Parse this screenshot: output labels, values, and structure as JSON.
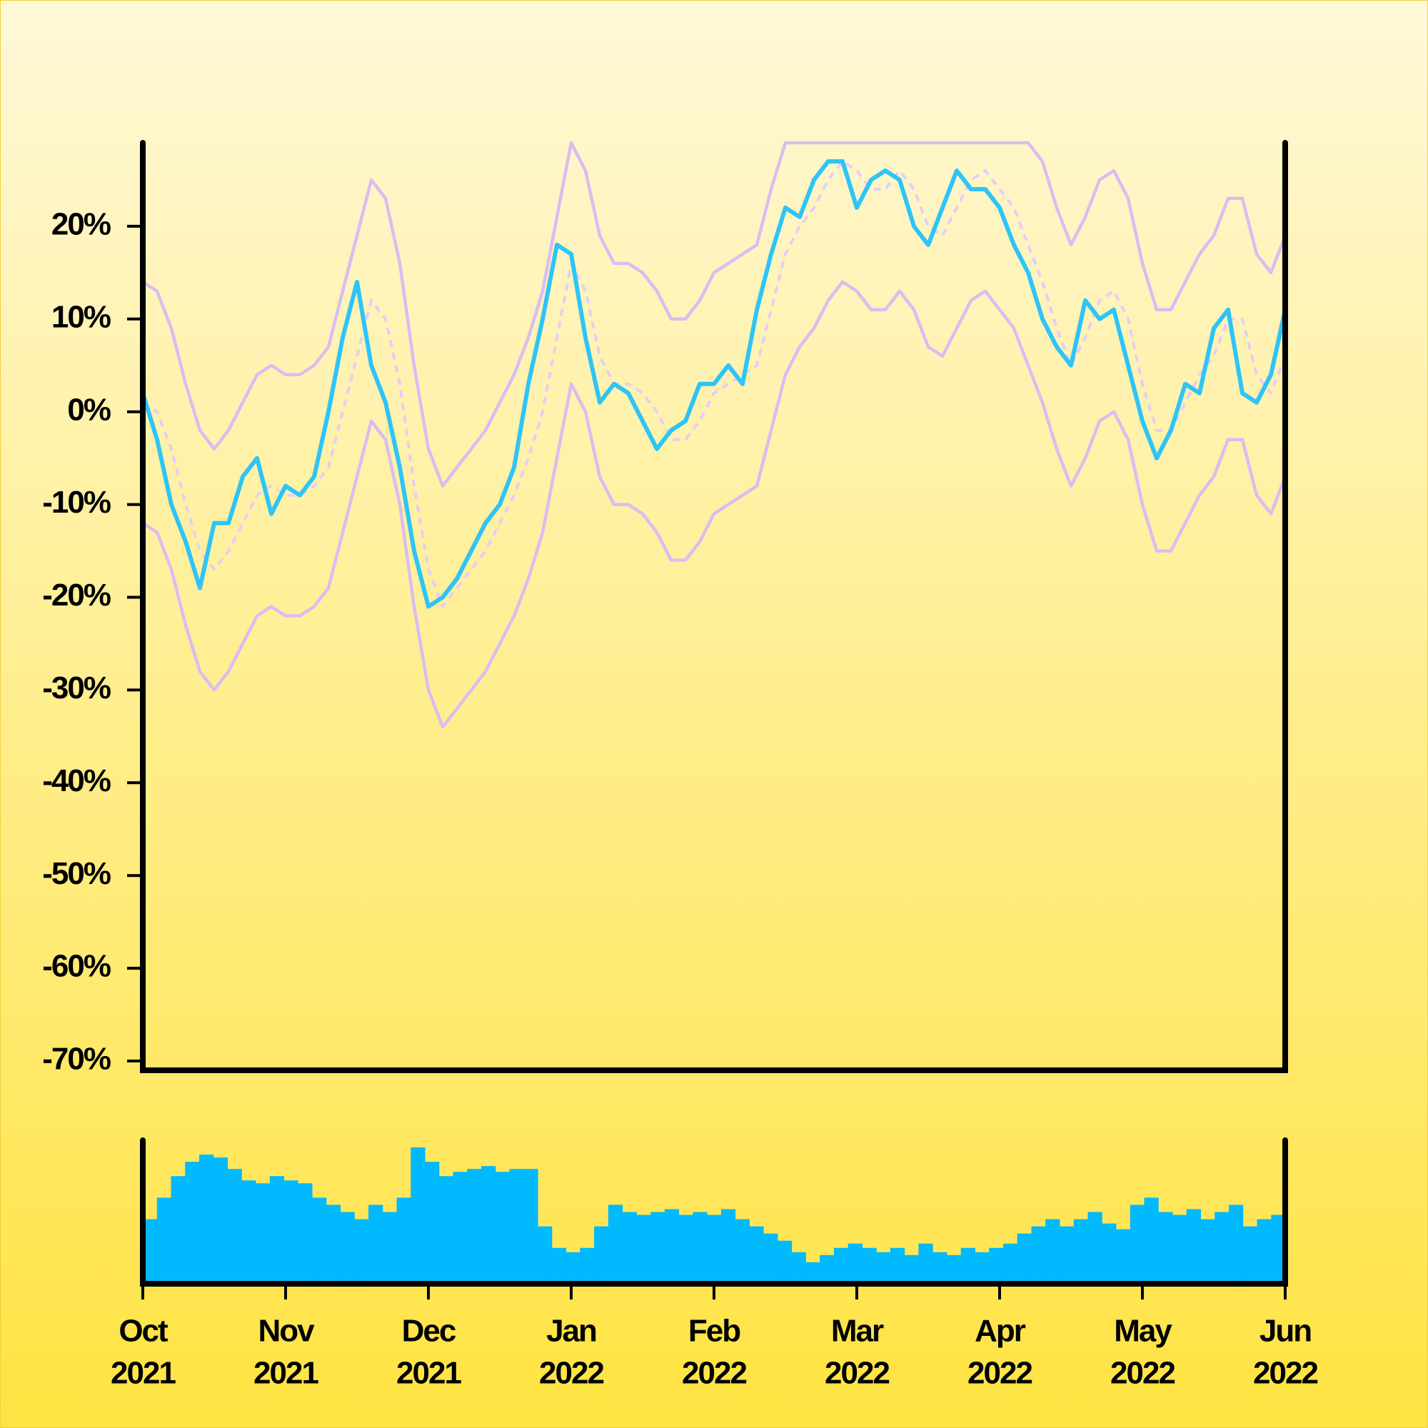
{
  "chart_data": [
    {
      "type": "line",
      "xlim": [
        0,
        8
      ],
      "ylim": [
        -71,
        29
      ],
      "yticks": [
        {
          "value": 20,
          "label": "20%"
        },
        {
          "value": 10,
          "label": "10%"
        },
        {
          "value": 0,
          "label": "0%"
        },
        {
          "value": -10,
          "label": "-10%"
        },
        {
          "value": -20,
          "label": "-20%"
        },
        {
          "value": -30,
          "label": "-30%"
        },
        {
          "value": -40,
          "label": "-40%"
        },
        {
          "value": -50,
          "label": "-50%"
        },
        {
          "value": -60,
          "label": "-60%"
        },
        {
          "value": -70,
          "label": "-70%"
        }
      ],
      "series": [
        {
          "color": "#d9bdf2",
          "dashed": false,
          "values": [
            14,
            13,
            9,
            3,
            -2,
            -4,
            -2,
            1,
            4,
            5,
            4,
            4,
            5,
            7,
            13,
            19,
            25,
            23,
            16,
            5,
            -4,
            -8,
            -6,
            -4,
            -2,
            1,
            4,
            8,
            13,
            21,
            29,
            26,
            19,
            16,
            16,
            15,
            13,
            10,
            10,
            12,
            15,
            16,
            17,
            18,
            24,
            29,
            29,
            29,
            29,
            29,
            29,
            29,
            29,
            29,
            29,
            29,
            29,
            29,
            29,
            29,
            29,
            29,
            29,
            27,
            22,
            18,
            21,
            25,
            26,
            23,
            16,
            11,
            11,
            14,
            17,
            19,
            23,
            23,
            17,
            15,
            19
          ]
        },
        {
          "color": "#d9bdf2",
          "dashed": false,
          "values": [
            -12,
            -13,
            -17,
            -23,
            -28,
            -30,
            -28,
            -25,
            -22,
            -21,
            -22,
            -22,
            -21,
            -19,
            -13,
            -7,
            -1,
            -3,
            -10,
            -21,
            -30,
            -34,
            -32,
            -30,
            -28,
            -25,
            -22,
            -18,
            -13,
            -5,
            3,
            0,
            -7,
            -10,
            -10,
            -11,
            -13,
            -16,
            -16,
            -14,
            -11,
            -10,
            -9,
            -8,
            -2,
            4,
            7,
            9,
            12,
            14,
            13,
            11,
            11,
            13,
            11,
            7,
            6,
            9,
            12,
            13,
            11,
            9,
            5,
            1,
            -4,
            -8,
            -5,
            -1,
            0,
            -3,
            -10,
            -15,
            -15,
            -12,
            -9,
            -7,
            -3,
            -3,
            -9,
            -11,
            -7
          ]
        },
        {
          "color": "#e6cdf5",
          "dashed": true,
          "values": [
            1,
            0,
            -4,
            -10,
            -15,
            -17,
            -15,
            -12,
            -9,
            -8,
            -9,
            -9,
            -8,
            -6,
            0,
            6,
            12,
            10,
            3,
            -8,
            -17,
            -21,
            -19,
            -17,
            -15,
            -12,
            -9,
            -5,
            0,
            8,
            16,
            13,
            6,
            3,
            3,
            2,
            0,
            -3,
            -3,
            -1,
            2,
            3,
            4,
            5,
            11,
            17,
            20,
            22,
            25,
            27,
            26,
            24,
            24,
            26,
            24,
            20,
            19,
            22,
            25,
            26,
            24,
            22,
            18,
            14,
            9,
            5,
            8,
            12,
            13,
            10,
            3,
            -2,
            -2,
            1,
            4,
            6,
            10,
            10,
            4,
            2,
            6
          ]
        },
        {
          "color": "#2ec4f7",
          "dashed": false,
          "values": [
            2,
            -3,
            -10,
            -14,
            -19,
            -12,
            -12,
            -7,
            -5,
            -11,
            -8,
            -9,
            -7,
            0,
            8,
            14,
            5,
            1,
            -6,
            -15,
            -21,
            -20,
            -18,
            -15,
            -12,
            -10,
            -6,
            3,
            10,
            18,
            17,
            8,
            1,
            3,
            2,
            -1,
            -4,
            -2,
            -1,
            3,
            3,
            5,
            3,
            11,
            17,
            22,
            21,
            25,
            27,
            27,
            22,
            25,
            26,
            25,
            20,
            18,
            22,
            26,
            24,
            24,
            22,
            18,
            15,
            10,
            7,
            5,
            12,
            10,
            11,
            5,
            -1,
            -5,
            -2,
            3,
            2,
            9,
            11,
            2,
            1,
            4,
            11
          ]
        }
      ]
    },
    {
      "type": "bar",
      "color": "#00b9ff",
      "xlim": [
        0,
        8
      ],
      "ylim": [
        0,
        100
      ],
      "xticks": [
        {
          "value": 0,
          "label": [
            "Oct",
            "2021"
          ]
        },
        {
          "value": 1,
          "label": [
            "Nov",
            "2021"
          ]
        },
        {
          "value": 2,
          "label": [
            "Dec",
            "2021"
          ]
        },
        {
          "value": 3,
          "label": [
            "Jan",
            "2022"
          ]
        },
        {
          "value": 4,
          "label": [
            "Feb",
            "2022"
          ]
        },
        {
          "value": 5,
          "label": [
            "Mar",
            "2022"
          ]
        },
        {
          "value": 6,
          "label": [
            "Apr",
            "2022"
          ]
        },
        {
          "value": 7,
          "label": [
            "May",
            "2022"
          ]
        },
        {
          "value": 8,
          "label": [
            "Jun",
            "2022"
          ]
        }
      ],
      "values": [
        45,
        60,
        75,
        85,
        90,
        88,
        80,
        72,
        70,
        75,
        72,
        70,
        60,
        55,
        50,
        45,
        55,
        50,
        60,
        95,
        85,
        75,
        78,
        80,
        82,
        78,
        80,
        80,
        40,
        25,
        22,
        25,
        40,
        55,
        50,
        48,
        50,
        52,
        48,
        50,
        48,
        52,
        45,
        40,
        35,
        30,
        22,
        15,
        20,
        25,
        28,
        25,
        22,
        25,
        20,
        28,
        22,
        20,
        25,
        22,
        25,
        28,
        35,
        40,
        45,
        40,
        45,
        50,
        42,
        38,
        55,
        60,
        50,
        48,
        52,
        45,
        50,
        55,
        40,
        45,
        48
      ]
    }
  ]
}
